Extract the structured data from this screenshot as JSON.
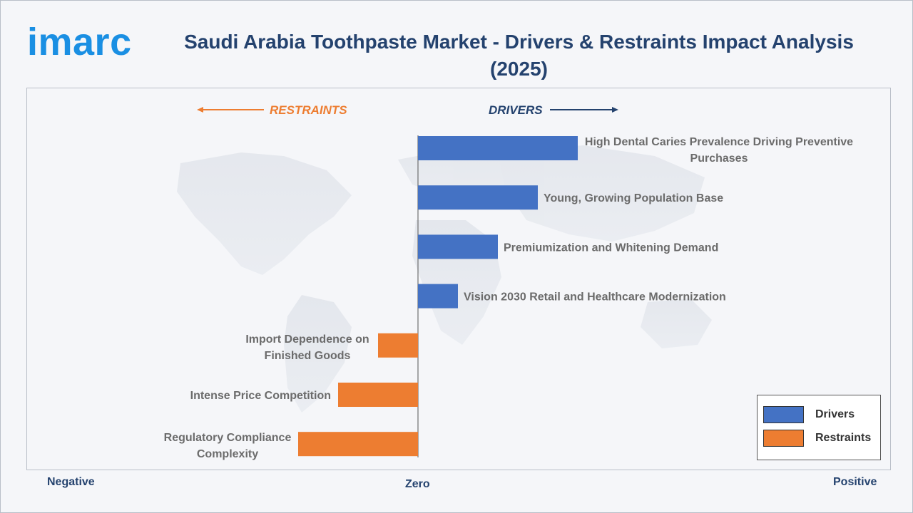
{
  "brand": {
    "logo_text": "imarc",
    "color": "#1a8fe3"
  },
  "title": "Saudi Arabia Toothpaste Market - Drivers & Restraints Impact Analysis (2025)",
  "axis_words": {
    "negative": "Negative",
    "zero": "Zero",
    "positive": "Positive"
  },
  "direction_labels": {
    "restraints": "RESTRAINTS",
    "drivers": "DRIVERS"
  },
  "legend": [
    {
      "label": "Drivers",
      "color": "#4472c4"
    },
    {
      "label": "Restraints",
      "color": "#ed7d31"
    }
  ],
  "colors": {
    "drivers": "#4472c4",
    "restraints": "#ed7d31",
    "title": "#24426e"
  },
  "chart_data": {
    "type": "bar",
    "orientation": "horizontal",
    "xlim": [
      -10,
      10
    ],
    "categories": [
      "High Dental Caries Prevalence Driving Preventive Purchases",
      "Young, Growing Population Base",
      "Premiumization and Whitening Demand",
      "Vision 2030 Retail and Healthcare Modernization",
      "Import Dependence on Finished Goods",
      "Intense Price Competition",
      "Regulatory Compliance Complexity"
    ],
    "series": [
      {
        "name": "Drivers",
        "values": [
          4.0,
          3.0,
          2.0,
          1.0,
          null,
          null,
          null
        ]
      },
      {
        "name": "Restraints",
        "values": [
          null,
          null,
          null,
          null,
          -1.0,
          -2.0,
          -3.0
        ]
      }
    ],
    "legend_position": "bottom-right",
    "grid": false
  }
}
